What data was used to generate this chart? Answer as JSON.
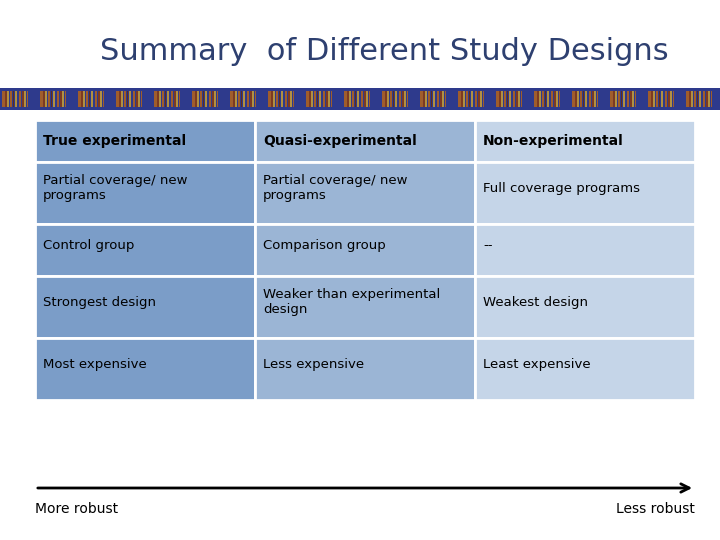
{
  "title": "Summary  of Different Study Designs",
  "title_color": "#2E4070",
  "title_fontsize": 22,
  "columns": [
    "True experimental",
    "Quasi-experimental",
    "Non-experimental"
  ],
  "rows": [
    [
      "Partial coverage/ new\nprograms",
      "Partial coverage/ new\nprograms",
      "Full coverage programs"
    ],
    [
      "Control group",
      "Comparison group",
      "--"
    ],
    [
      "Strongest design",
      "Weaker than experimental\ndesign",
      "Weakest design"
    ],
    [
      "Most expensive",
      "Less expensive",
      "Least expensive"
    ]
  ],
  "col_colors": [
    "#7B9DC8",
    "#9BB5D5",
    "#C5D5E8"
  ],
  "header_text_color": "#000000",
  "cell_text_color": "#000000",
  "arrow_label_left": "More robust",
  "arrow_label_right": "Less robust",
  "background_color": "#FFFFFF",
  "stripe_color_dark": "#2E3A8C",
  "stripe_color_light": "#B5641A",
  "stripe_color_gold": "#C8A035"
}
